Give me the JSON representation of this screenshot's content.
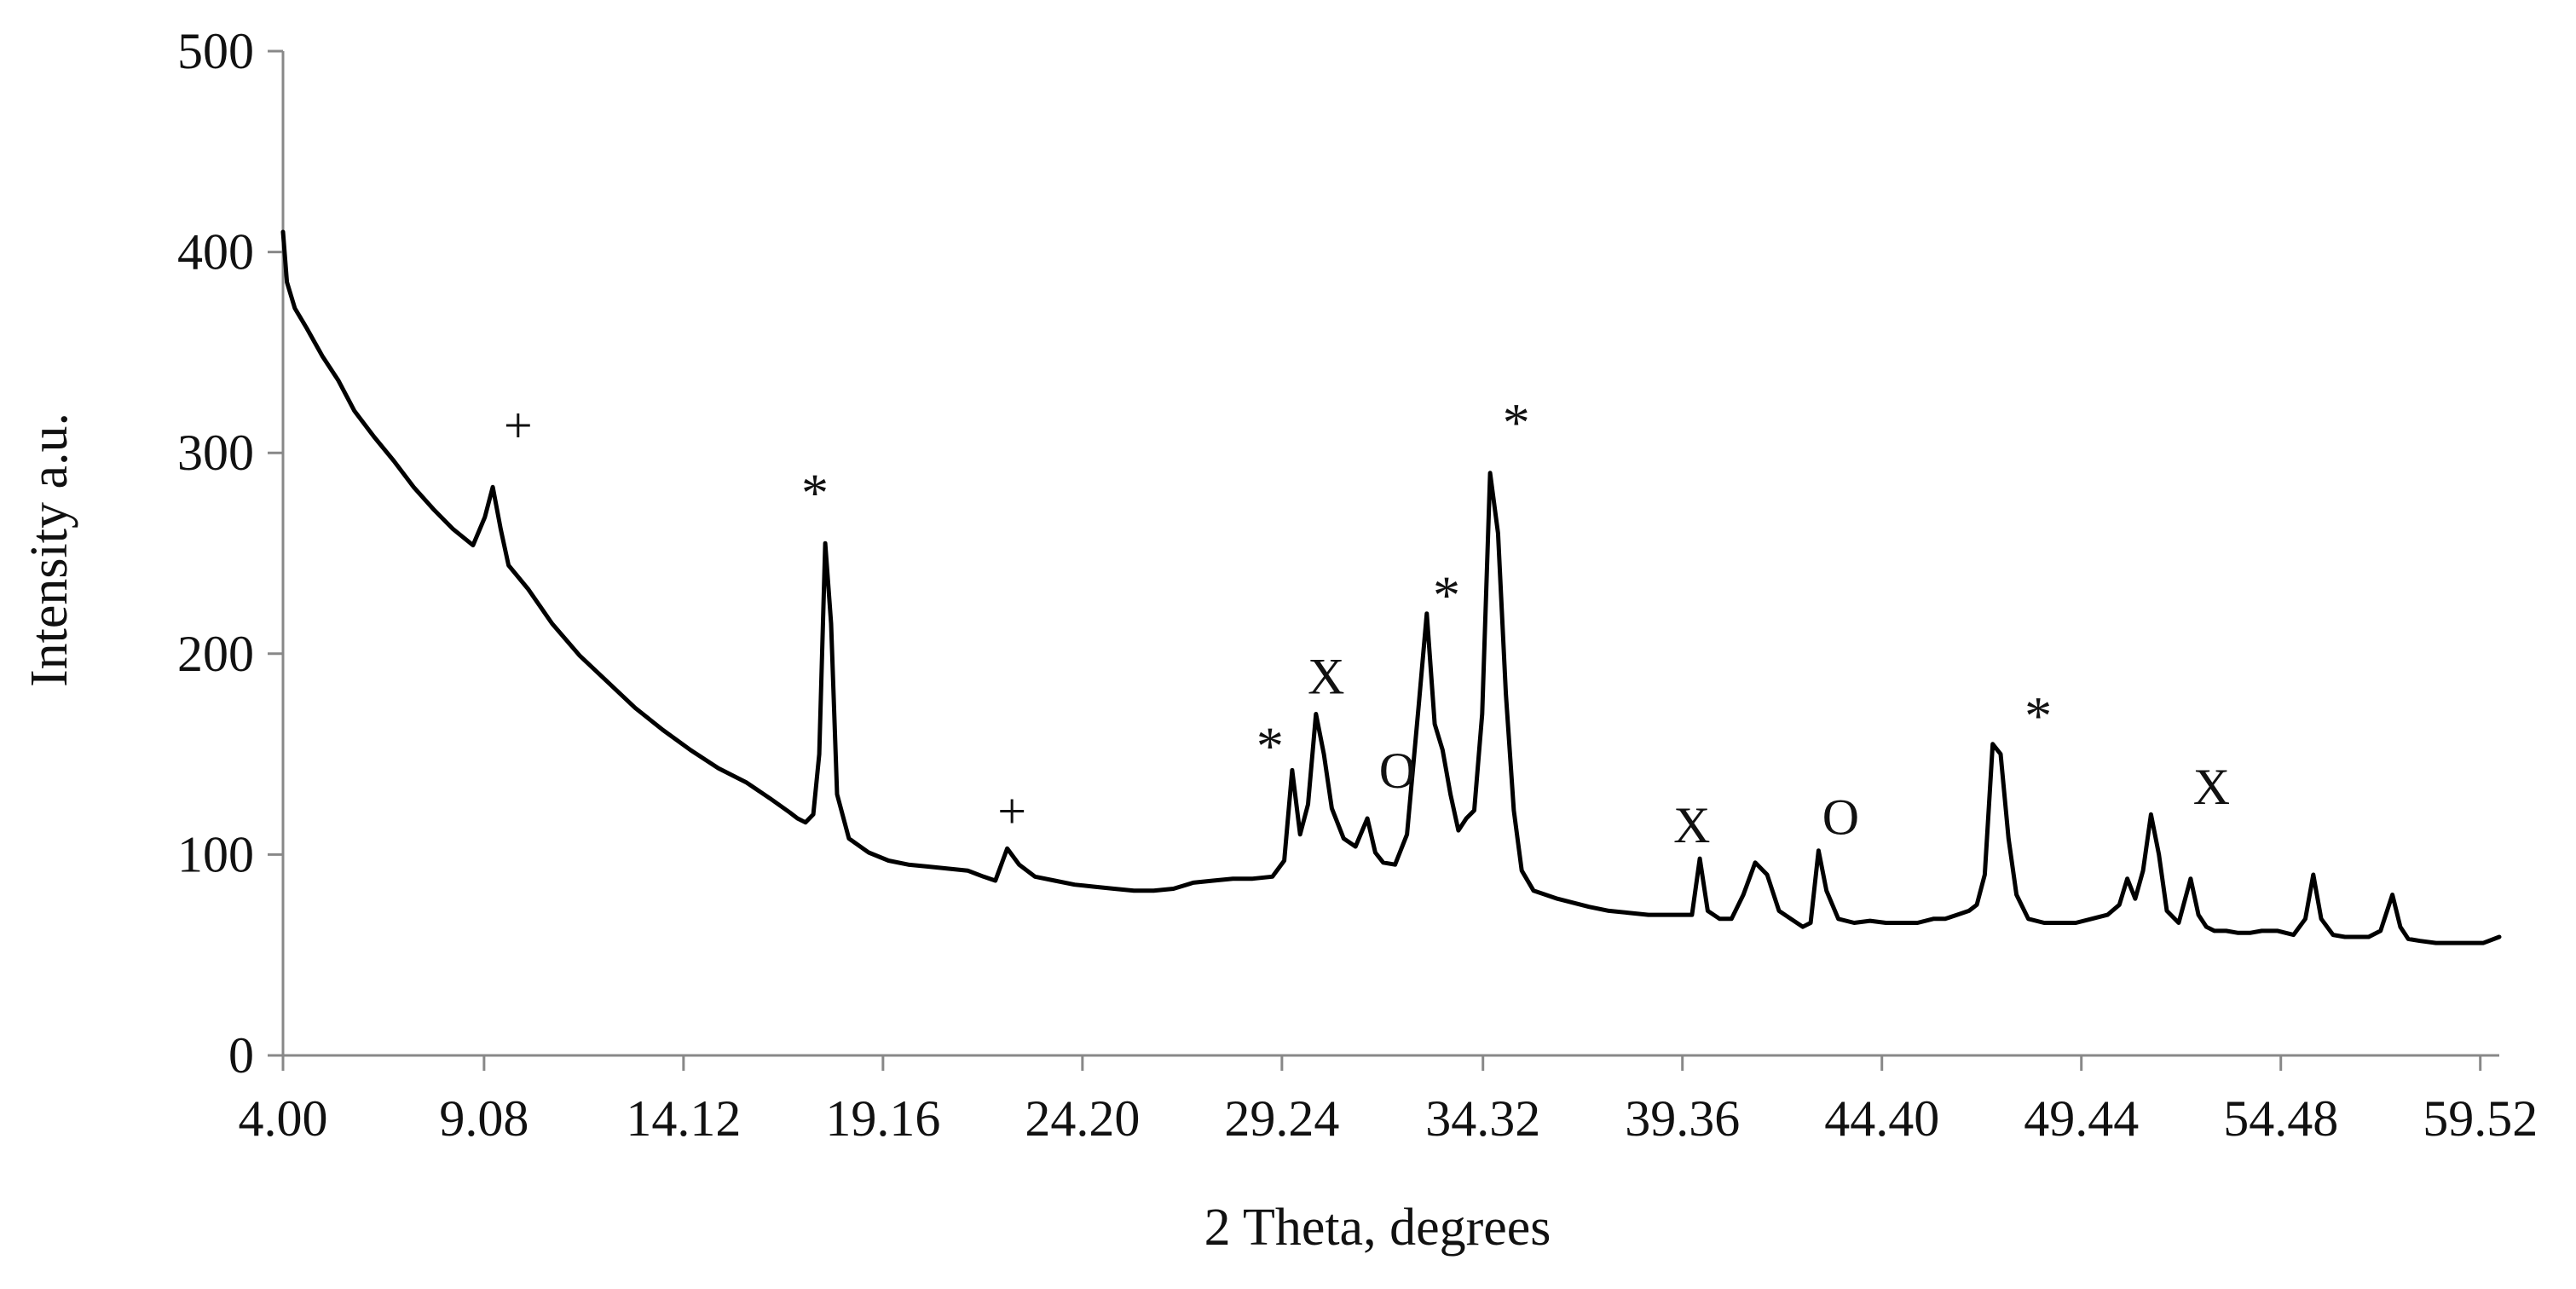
{
  "chart_data": {
    "type": "line",
    "title": "",
    "xlabel": "2 Theta, degrees",
    "ylabel": "Intensity a.u.",
    "xlim": [
      4.0,
      60.0
    ],
    "ylim": [
      0,
      500
    ],
    "x_ticks": [
      "4.00",
      "9.08",
      "14.12",
      "19.16",
      "24.20",
      "29.24",
      "34.32",
      "39.36",
      "44.40",
      "49.44",
      "54.48",
      "59.52"
    ],
    "x_tick_values": [
      4.0,
      9.08,
      14.12,
      19.16,
      24.2,
      29.24,
      34.32,
      39.36,
      44.4,
      49.44,
      54.48,
      59.52
    ],
    "y_ticks": [
      "0",
      "100",
      "200",
      "300",
      "400",
      "500"
    ],
    "y_tick_values": [
      0,
      100,
      200,
      300,
      400,
      500
    ],
    "grid": false,
    "legend": "none",
    "line_color": "#000000",
    "series": [
      {
        "x": [
          4.0,
          4.1,
          4.3,
          4.6,
          5.0,
          5.4,
          5.8,
          6.3,
          6.8,
          7.3,
          7.8,
          8.3,
          8.8,
          9.1,
          9.3,
          9.5,
          9.7,
          10.2,
          10.8,
          11.5,
          12.2,
          12.9,
          13.6,
          14.3,
          15.0,
          15.7,
          16.3,
          16.8,
          17.0,
          17.2,
          17.4,
          17.55,
          17.7,
          17.85,
          18.0,
          18.3,
          18.8,
          19.3,
          19.8,
          20.3,
          20.8,
          21.3,
          21.7,
          22.0,
          22.3,
          22.6,
          23.0,
          23.5,
          24.0,
          24.5,
          25.0,
          25.5,
          26.0,
          26.5,
          27.0,
          27.5,
          28.0,
          28.5,
          29.0,
          29.3,
          29.5,
          29.7,
          29.9,
          30.1,
          30.3,
          30.5,
          30.8,
          31.1,
          31.4,
          31.6,
          31.8,
          32.1,
          32.4,
          32.7,
          32.9,
          33.1,
          33.3,
          33.5,
          33.7,
          33.9,
          34.1,
          34.3,
          34.5,
          34.7,
          34.9,
          35.1,
          35.3,
          35.6,
          35.9,
          36.2,
          36.6,
          37.0,
          37.5,
          38.0,
          38.5,
          39.0,
          39.4,
          39.6,
          39.8,
          40.0,
          40.3,
          40.6,
          40.9,
          41.2,
          41.5,
          41.8,
          42.1,
          42.4,
          42.6,
          42.8,
          43.0,
          43.3,
          43.7,
          44.1,
          44.5,
          44.9,
          45.3,
          45.7,
          46.0,
          46.3,
          46.6,
          46.8,
          47.0,
          47.2,
          47.4,
          47.6,
          47.8,
          48.1,
          48.5,
          48.9,
          49.3,
          49.7,
          50.1,
          50.4,
          50.6,
          50.8,
          51.0,
          51.2,
          51.4,
          51.6,
          51.9,
          52.2,
          52.4,
          52.6,
          52.8,
          53.1,
          53.4,
          53.7,
          54.0,
          54.4,
          54.8,
          55.1,
          55.3,
          55.5,
          55.8,
          56.1,
          56.4,
          56.7,
          57.0,
          57.3,
          57.5,
          57.7,
          58.0,
          58.4,
          58.8,
          59.2,
          59.6,
          60.0
        ],
        "y": [
          410,
          385,
          372,
          362,
          348,
          336,
          321,
          308,
          296,
          283,
          272,
          262,
          254,
          268,
          283,
          262,
          244,
          232,
          215,
          199,
          186,
          173,
          162,
          152,
          143,
          136,
          128,
          121,
          118,
          116,
          120,
          150,
          255,
          215,
          130,
          108,
          101,
          97,
          95,
          94,
          93,
          92,
          89,
          87,
          103,
          95,
          89,
          87,
          85,
          84,
          83,
          82,
          82,
          83,
          86,
          87,
          88,
          88,
          89,
          97,
          142,
          110,
          125,
          170,
          150,
          123,
          108,
          104,
          118,
          101,
          96,
          95,
          110,
          175,
          220,
          165,
          152,
          130,
          112,
          118,
          122,
          170,
          290,
          260,
          180,
          122,
          92,
          82,
          80,
          78,
          76,
          74,
          72,
          71,
          70,
          70,
          70,
          70,
          98,
          72,
          68,
          68,
          80,
          96,
          90,
          72,
          68,
          64,
          66,
          102,
          82,
          68,
          66,
          67,
          66,
          66,
          66,
          68,
          68,
          70,
          72,
          75,
          90,
          155,
          150,
          108,
          80,
          68,
          66,
          66,
          66,
          68,
          70,
          75,
          88,
          78,
          92,
          120,
          100,
          72,
          66,
          88,
          70,
          64,
          62,
          62,
          61,
          61,
          62,
          62,
          60,
          68,
          90,
          68,
          60,
          59,
          59,
          59,
          62,
          80,
          64,
          58,
          57,
          56,
          56,
          56,
          56,
          59
        ]
      }
    ],
    "annotations": [
      {
        "text": "+",
        "x": 9.94,
        "y": 312
      },
      {
        "text": "*",
        "x": 21.6,
        "y": 0
      },
      {
        "text": "*",
        "x": 17.44,
        "y": 288
      },
      {
        "text": "+",
        "x": 22.42,
        "y": 120
      },
      {
        "text": "*",
        "x": 28.94,
        "y": 162
      },
      {
        "text": "X",
        "x": 30.36,
        "y": 187
      },
      {
        "text": "O",
        "x": 32.16,
        "y": 140
      },
      {
        "text": "*",
        "x": 33.4,
        "y": 237
      },
      {
        "text": "*",
        "x": 35.16,
        "y": 323
      },
      {
        "text": "X",
        "x": 39.6,
        "y": 113
      },
      {
        "text": "O",
        "x": 43.36,
        "y": 117
      },
      {
        "text": "*",
        "x": 48.35,
        "y": 177
      },
      {
        "text": "X",
        "x": 52.73,
        "y": 132
      }
    ]
  }
}
